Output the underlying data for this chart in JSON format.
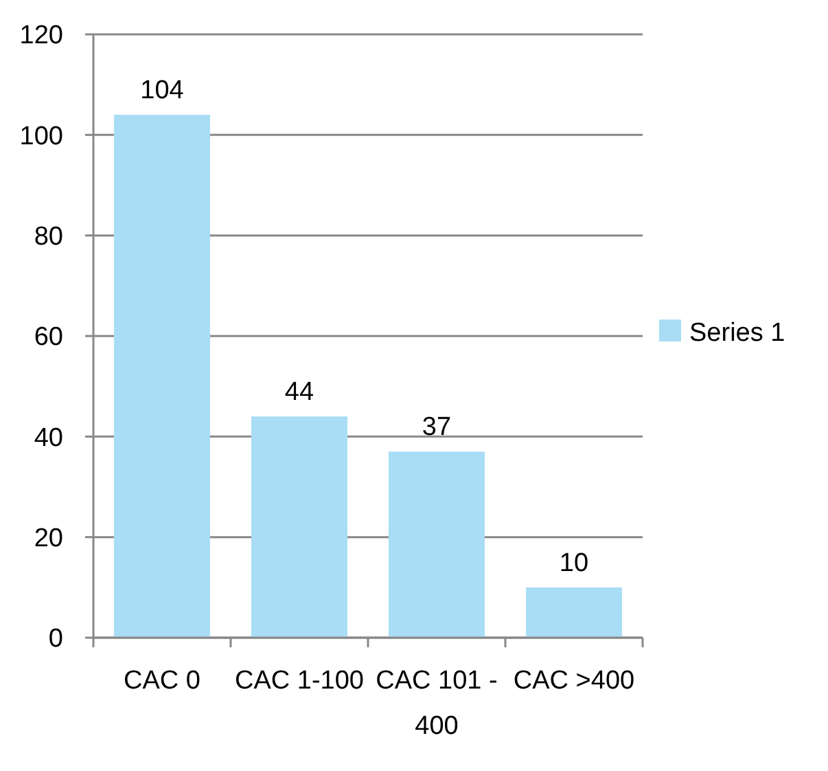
{
  "chart_data": {
    "type": "bar",
    "categories": [
      "CAC 0",
      "CAC 1-100",
      "CAC 101 - 400",
      "CAC >400"
    ],
    "series": [
      {
        "name": "Series 1",
        "color": "#a9dcf5",
        "values": [
          104,
          44,
          37,
          10
        ]
      }
    ],
    "ylim": [
      0,
      120
    ],
    "yticks": [
      0,
      20,
      40,
      60,
      80,
      100,
      120
    ],
    "grid": "y",
    "legend": "right",
    "data_labels": true
  }
}
